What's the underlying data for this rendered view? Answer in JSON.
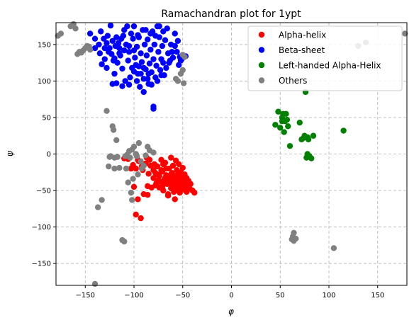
{
  "chart_data": {
    "type": "scatter",
    "title": "Ramachandran plot for 1ypt",
    "xlabel": "φ",
    "ylabel": "ψ",
    "xlim": [
      -180,
      180
    ],
    "ylim": [
      -180,
      180
    ],
    "x_ticks": [
      -150,
      -100,
      -50,
      0,
      50,
      100,
      150
    ],
    "y_ticks": [
      -150,
      -100,
      -50,
      0,
      50,
      100,
      150
    ],
    "x_tick_labels": [
      "−150",
      "−100",
      "−50",
      "0",
      "50",
      "100",
      "150"
    ],
    "y_tick_labels": [
      "−150",
      "−100",
      "−50",
      "0",
      "50",
      "100",
      "150"
    ],
    "grid": true,
    "legend_position": "top-right",
    "series": [
      {
        "name": "Alpha-helix",
        "color": "#ff0000",
        "points": [
          [
            -100,
            -45
          ],
          [
            -98,
            -83
          ],
          [
            -96,
            -62
          ],
          [
            -93,
            -88
          ],
          [
            -90,
            -55
          ],
          [
            -86,
            -56
          ],
          [
            -86,
            -44
          ],
          [
            -82,
            -46
          ],
          [
            -80,
            -33
          ],
          [
            -78,
            -26
          ],
          [
            -78,
            -43
          ],
          [
            -76,
            -17
          ],
          [
            -74,
            -30
          ],
          [
            -74,
            -46
          ],
          [
            -72,
            -8
          ],
          [
            -71,
            -24
          ],
          [
            -70,
            -37
          ],
          [
            -70,
            -50
          ],
          [
            -68,
            -12
          ],
          [
            -67,
            -29
          ],
          [
            -66,
            -41
          ],
          [
            -65,
            -55
          ],
          [
            -64,
            -20
          ],
          [
            -63,
            -33
          ],
          [
            -62,
            -5
          ],
          [
            -62,
            -47
          ],
          [
            -61,
            -26
          ],
          [
            -60,
            -39
          ],
          [
            -60,
            -16
          ],
          [
            -59,
            -52
          ],
          [
            -58,
            -30
          ],
          [
            -58,
            -44
          ],
          [
            -57,
            -9
          ],
          [
            -57,
            -36
          ],
          [
            -56,
            -22
          ],
          [
            -56,
            -48
          ],
          [
            -55,
            -28
          ],
          [
            -55,
            -41
          ],
          [
            -54,
            -14
          ],
          [
            -54,
            -34
          ],
          [
            -53,
            -45
          ],
          [
            -53,
            -53
          ],
          [
            -52,
            -25
          ],
          [
            -52,
            -38
          ],
          [
            -51,
            -31
          ],
          [
            -50,
            -43
          ],
          [
            -50,
            -19
          ],
          [
            -49,
            -35
          ],
          [
            -48,
            -49
          ],
          [
            -48,
            -28
          ],
          [
            -47,
            -40
          ],
          [
            -46,
            -33
          ],
          [
            -46,
            -52
          ],
          [
            -45,
            -44
          ],
          [
            -44,
            -37
          ],
          [
            -43,
            -47
          ],
          [
            -42,
            -41
          ],
          [
            -40,
            -50
          ],
          [
            -38,
            -53
          ],
          [
            -58,
            -62
          ],
          [
            -65,
            -57
          ],
          [
            -75,
            -36
          ],
          [
            -68,
            -33
          ],
          [
            -63,
            -40
          ],
          [
            -61,
            -44
          ],
          [
            -66,
            -36
          ],
          [
            -69,
            -40
          ],
          [
            -71,
            -45
          ],
          [
            -73,
            -38
          ],
          [
            -77,
            -40
          ],
          [
            -80,
            -22
          ],
          [
            -83,
            -16
          ],
          [
            -85,
            -27
          ],
          [
            -88,
            -13
          ],
          [
            -92,
            -17
          ],
          [
            -95,
            -10
          ],
          [
            -98,
            -20
          ],
          [
            -103,
            -20
          ],
          [
            -106,
            -7
          ],
          [
            -110,
            -6
          ],
          [
            -60,
            -33
          ],
          [
            -57,
            -31
          ],
          [
            -56,
            -38
          ],
          [
            -54,
            -42
          ],
          [
            -53,
            -31
          ],
          [
            -51,
            -48
          ],
          [
            -49,
            -30
          ],
          [
            -62,
            -28
          ],
          [
            -64,
            -32
          ],
          [
            -67,
            -20
          ],
          [
            -70,
            -14
          ],
          [
            -72,
            -22
          ],
          [
            -76,
            -28
          ],
          [
            -79,
            -14
          ],
          [
            -84,
            -8
          ],
          [
            -87,
            -5
          ],
          [
            -91,
            -22
          ],
          [
            -96,
            -8
          ],
          [
            -101,
            -15
          ]
        ]
      },
      {
        "name": "Beta-sheet",
        "color": "#0000ff",
        "points": [
          [
            -145,
            165
          ],
          [
            -140,
            158
          ],
          [
            -136,
            150
          ],
          [
            -133,
            123
          ],
          [
            -130,
            130
          ],
          [
            -128,
            118
          ],
          [
            -126,
            140
          ],
          [
            -124,
            176
          ],
          [
            -122,
            155
          ],
          [
            -120,
            110
          ],
          [
            -118,
            160
          ],
          [
            -117,
            125
          ],
          [
            -115,
            145
          ],
          [
            -114,
            135
          ],
          [
            -112,
            117
          ],
          [
            -110,
            170
          ],
          [
            -109,
            100
          ],
          [
            -108,
            150
          ],
          [
            -106,
            128
          ],
          [
            -105,
            140
          ],
          [
            -104,
            105
          ],
          [
            -103,
            165
          ],
          [
            -102,
            118
          ],
          [
            -100,
            175
          ],
          [
            -99,
            132
          ],
          [
            -98,
            122
          ],
          [
            -97,
            147
          ],
          [
            -96,
            110
          ],
          [
            -95,
            160
          ],
          [
            -94,
            92
          ],
          [
            -93,
            138
          ],
          [
            -92,
            126
          ],
          [
            -91,
            170
          ],
          [
            -90,
            103
          ],
          [
            -89,
            150
          ],
          [
            -88,
            116
          ],
          [
            -87,
            135
          ],
          [
            -86,
            157
          ],
          [
            -85,
            96
          ],
          [
            -84,
            124
          ],
          [
            -83,
            143
          ],
          [
            -82,
            112
          ],
          [
            -81,
            168
          ],
          [
            -80,
            130
          ],
          [
            -79,
            150
          ],
          [
            -78,
            105
          ],
          [
            -77,
            121
          ],
          [
            -76,
            175
          ],
          [
            -75,
            140
          ],
          [
            -74,
            160
          ],
          [
            -73,
            115
          ],
          [
            -72,
            130
          ],
          [
            -71,
            148
          ],
          [
            -70,
            125
          ],
          [
            -69,
            108
          ],
          [
            -68,
            156
          ],
          [
            -66,
            172
          ],
          [
            -65,
            138
          ],
          [
            -63,
            128
          ],
          [
            -62,
            150
          ],
          [
            -60,
            132
          ],
          [
            -58,
            165
          ],
          [
            -56,
            140
          ],
          [
            -54,
            122
          ],
          [
            -53,
            133
          ],
          [
            -51,
            130
          ],
          [
            -49,
            133
          ],
          [
            -47,
            134
          ],
          [
            -134,
            168
          ],
          [
            -131,
            158
          ],
          [
            -128,
            152
          ],
          [
            -125,
            145
          ],
          [
            -123,
            137
          ],
          [
            -121,
            128
          ],
          [
            -119,
            148
          ],
          [
            -116,
            152
          ],
          [
            -113,
            158
          ],
          [
            -111,
            162
          ],
          [
            -107,
            175
          ],
          [
            -101,
            158
          ],
          [
            -96,
            163
          ],
          [
            -88,
            170
          ],
          [
            -83,
            165
          ],
          [
            -78,
            162
          ],
          [
            -74,
            175
          ],
          [
            -70,
            168
          ],
          [
            -85,
            110
          ],
          [
            -90,
            118
          ],
          [
            -95,
            120
          ],
          [
            -100,
            142
          ],
          [
            -105,
            148
          ],
          [
            -110,
            142
          ],
          [
            -115,
            138
          ],
          [
            -120,
            131
          ],
          [
            -80,
            65
          ],
          [
            -80,
            62
          ],
          [
            -90,
            85
          ],
          [
            -105,
            95
          ],
          [
            -112,
            93
          ],
          [
            -118,
            97
          ],
          [
            -122,
            96
          ],
          [
            -140,
            145
          ],
          [
            -135,
            138
          ],
          [
            -130,
            145
          ],
          [
            -127,
            162
          ],
          [
            -100,
            113
          ],
          [
            -97,
            100
          ],
          [
            -93,
            110
          ],
          [
            -86,
            103
          ],
          [
            -82,
            95
          ],
          [
            -76,
            100
          ],
          [
            -72,
            108
          ],
          [
            -67,
            118
          ],
          [
            -64,
            125
          ],
          [
            -61,
            140
          ],
          [
            -58,
            148
          ],
          [
            -55,
            155
          ],
          [
            -52,
            128
          ]
        ]
      },
      {
        "name": "Left-handed Alpha-Helix",
        "color": "#008000",
        "points": [
          [
            45,
            40
          ],
          [
            48,
            58
          ],
          [
            50,
            36
          ],
          [
            52,
            50
          ],
          [
            53,
            55
          ],
          [
            54,
            30
          ],
          [
            55,
            45
          ],
          [
            56,
            55
          ],
          [
            58,
            38
          ],
          [
            60,
            11
          ],
          [
            70,
            43
          ],
          [
            72,
            20
          ],
          [
            75,
            25
          ],
          [
            76,
            85
          ],
          [
            77,
            -5
          ],
          [
            78,
            -3
          ],
          [
            78,
            0
          ],
          [
            78,
            23
          ],
          [
            80,
            -3
          ],
          [
            82,
            -6
          ],
          [
            84,
            25
          ],
          [
            115,
            32
          ],
          [
            52,
            45
          ],
          [
            57,
            47
          ],
          [
            74,
            22
          ],
          [
            79,
            20
          ]
        ]
      },
      {
        "name": "Others",
        "color": "#808080",
        "points": [
          [
            -178,
            162
          ],
          [
            -175,
            165
          ],
          [
            -165,
            175
          ],
          [
            -162,
            178
          ],
          [
            -160,
            172
          ],
          [
            -158,
            137
          ],
          [
            -156,
            140
          ],
          [
            -154,
            139
          ],
          [
            -152,
            142
          ],
          [
            -150,
            145
          ],
          [
            -148,
            148
          ],
          [
            -146,
            147
          ],
          [
            -145,
            143
          ],
          [
            -140,
            -178
          ],
          [
            -137,
            -73
          ],
          [
            -133,
            -63
          ],
          [
            -128,
            59
          ],
          [
            -126,
            -17
          ],
          [
            -124,
            -3
          ],
          [
            -122,
            38
          ],
          [
            -121,
            33
          ],
          [
            -120,
            -20
          ],
          [
            -118,
            19
          ],
          [
            -117,
            -4
          ],
          [
            -115,
            -19
          ],
          [
            -112,
            -118
          ],
          [
            -110,
            -120
          ],
          [
            -109,
            -3
          ],
          [
            -108,
            -20
          ],
          [
            -107,
            -1
          ],
          [
            -106,
            -39
          ],
          [
            -105,
            4
          ],
          [
            -104,
            -5
          ],
          [
            -103,
            -53
          ],
          [
            -102,
            -63
          ],
          [
            -101,
            -34
          ],
          [
            -100,
            10
          ],
          [
            -98,
            0
          ],
          [
            -96,
            -28
          ],
          [
            -95,
            15
          ],
          [
            -93,
            -10
          ],
          [
            -90,
            -16
          ],
          [
            -88,
            -2
          ],
          [
            -86,
            10
          ],
          [
            -84,
            5
          ],
          [
            -80,
            2
          ],
          [
            -57,
            103
          ],
          [
            -55,
            100
          ],
          [
            -52,
            110
          ],
          [
            -50,
            115
          ],
          [
            -49,
            97
          ],
          [
            -48,
            133
          ],
          [
            -50,
            136
          ],
          [
            64,
            -108
          ],
          [
            63,
            -113
          ],
          [
            62,
            -117
          ],
          [
            64,
            -119
          ],
          [
            66,
            -116
          ],
          [
            105,
            -129
          ],
          [
            130,
            148
          ],
          [
            138,
            153
          ],
          [
            178,
            165
          ],
          [
            -102,
            6
          ],
          [
            -97,
            -3
          ],
          [
            -92,
            -20
          ],
          [
            -120,
            -5
          ],
          [
            -125,
            -4
          ]
        ]
      }
    ]
  }
}
